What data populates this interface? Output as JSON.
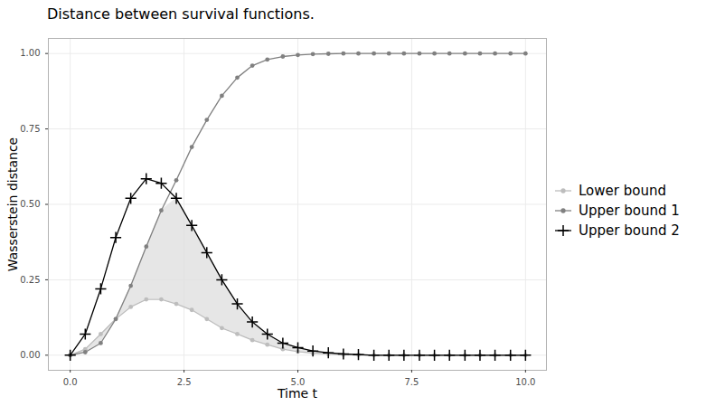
{
  "chart_data": {
    "type": "line",
    "title": "Distance between survival functions.",
    "x_label": "Time t",
    "y_label": "Wasserstein distance",
    "x": [
      0,
      0.33,
      0.67,
      1,
      1.33,
      1.67,
      2,
      2.33,
      2.67,
      3,
      3.33,
      3.67,
      4,
      4.33,
      4.67,
      5,
      5.33,
      5.67,
      6,
      6.33,
      6.67,
      7,
      7.33,
      7.67,
      8,
      8.33,
      8.67,
      9,
      9.33,
      9.67,
      10
    ],
    "series": [
      {
        "name": "Lower bound",
        "color": "#bdbdbd",
        "marker": "circle",
        "line_style": "solid",
        "values": [
          0,
          0.02,
          0.07,
          0.12,
          0.16,
          0.185,
          0.185,
          0.17,
          0.15,
          0.12,
          0.09,
          0.07,
          0.05,
          0.035,
          0.02,
          0.012,
          0.007,
          0.004,
          0.002,
          0.001,
          0,
          0,
          0,
          0,
          0,
          0,
          0,
          0,
          0,
          0,
          0
        ]
      },
      {
        "name": "Upper bound 1",
        "color": "#808080",
        "marker": "circle",
        "line_style": "solid",
        "values": [
          0,
          0.01,
          0.04,
          0.12,
          0.23,
          0.36,
          0.48,
          0.58,
          0.69,
          0.78,
          0.86,
          0.92,
          0.96,
          0.98,
          0.99,
          0.995,
          0.998,
          0.999,
          1,
          1,
          1,
          1,
          1,
          1,
          1,
          1,
          1,
          1,
          1,
          1,
          1
        ]
      },
      {
        "name": "Upper bound 2",
        "color": "#000000",
        "marker": "plus",
        "line_style": "solid",
        "values": [
          0,
          0.07,
          0.22,
          0.39,
          0.52,
          0.585,
          0.57,
          0.52,
          0.43,
          0.34,
          0.25,
          0.17,
          0.11,
          0.07,
          0.04,
          0.025,
          0.014,
          0.008,
          0.004,
          0.002,
          0,
          0,
          0,
          0,
          0,
          0,
          0,
          0,
          0,
          0,
          0
        ]
      }
    ],
    "xlim": [
      -0.48,
      10.46
    ],
    "ylim": [
      -0.05,
      1.05
    ],
    "xticks": [
      {
        "value": 0,
        "label": "0.0"
      },
      {
        "value": 2.5,
        "label": "2.5"
      },
      {
        "value": 5,
        "label": "5.0"
      },
      {
        "value": 7.5,
        "label": "7.5"
      },
      {
        "value": 10,
        "label": "10.0"
      }
    ],
    "yticks": [
      {
        "value": 0,
        "label": "0.00"
      },
      {
        "value": 0.25,
        "label": "0.25"
      },
      {
        "value": 0.5,
        "label": "0.50"
      },
      {
        "value": 0.75,
        "label": "0.75"
      },
      {
        "value": 1,
        "label": "1.00"
      }
    ],
    "grid": true,
    "legend": "right"
  }
}
